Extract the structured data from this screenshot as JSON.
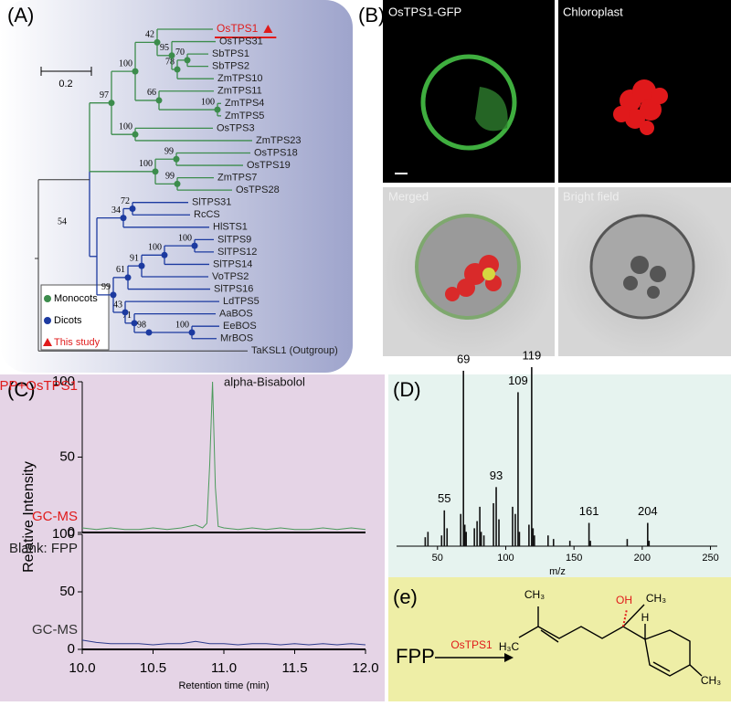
{
  "panels": {
    "a": {
      "label": "(A)",
      "leaves": [
        "OsTPS1",
        "OsTPS31",
        "SbTPS1",
        "SbTPS2",
        "ZmTPS10",
        "ZmTPS11",
        "ZmTPS4",
        "ZmTPS5",
        "OsTPS3",
        "ZmTPS23",
        "OsTPS18",
        "OsTPS19",
        "ZmTPS7",
        "OsTPS28",
        "SlTPS31",
        "RcCS",
        "HlSTS1",
        "SlTPS9",
        "SlTPS12",
        "SlTPS14",
        "VoTPS2",
        "SlTPS16",
        "LdTPS5",
        "AaBOS",
        "EeBOS",
        "MrBOS",
        "TaKSL1 (Outgroup)"
      ],
      "bootstrap": [
        42,
        95,
        78,
        70,
        100,
        66,
        100,
        97,
        100,
        99,
        100,
        99,
        72,
        34,
        54,
        100,
        100,
        99,
        91,
        61,
        43,
        71,
        98,
        100
      ],
      "scale": "0.2",
      "legend": [
        "Monocots",
        "Dicots",
        "This study"
      ]
    },
    "b": {
      "label": "(B)",
      "images": [
        "OsTPS1-GFP",
        "Chloroplast",
        "Merged",
        "Bright field"
      ]
    },
    "c": {
      "label": "(C)"
    },
    "d": {
      "label": "(D)"
    },
    "e": {
      "label": "(e)",
      "substrate": "FPP",
      "enzyme": "OsTPS1",
      "groups": [
        "CH₃",
        "OH",
        "CH₃",
        "H",
        "H₃C",
        "CH₃"
      ]
    }
  },
  "chart_data": [
    {
      "type": "line",
      "ylabel": "Relative Intensity",
      "x": [
        10.0,
        10.1,
        10.2,
        10.3,
        10.4,
        10.5,
        10.6,
        10.7,
        10.8,
        10.85,
        10.88,
        10.9,
        10.92,
        10.94,
        10.96,
        11.0,
        11.1,
        11.2,
        11.3,
        11.4,
        11.5,
        11.6,
        11.7,
        11.8,
        11.9,
        12.0
      ],
      "series": [
        {
          "name": "FPP+OsTPS1",
          "color": "#4c9a5c",
          "values": [
            3,
            2,
            3,
            2,
            2,
            3,
            2,
            3,
            5,
            3,
            6,
            45,
            100,
            30,
            4,
            3,
            2,
            3,
            2,
            3,
            2,
            2,
            3,
            2,
            3,
            2
          ]
        }
      ],
      "annotations": [
        "alpha-Bisabolol",
        "GC-MS"
      ],
      "xlim": [
        10.0,
        12.0
      ],
      "ylim": [
        0,
        100
      ],
      "yticks": [
        0,
        50,
        100
      ]
    },
    {
      "type": "line",
      "xlabel": "Retention time (min)",
      "x": [
        10.0,
        10.1,
        10.2,
        10.3,
        10.4,
        10.5,
        10.6,
        10.7,
        10.8,
        10.9,
        11.0,
        11.1,
        11.2,
        11.3,
        11.4,
        11.5,
        11.6,
        11.7,
        11.8,
        11.9,
        12.0
      ],
      "series": [
        {
          "name": "Blank: FPP",
          "color": "#2c3a8c",
          "values": [
            8,
            6,
            5,
            5,
            5,
            4,
            5,
            5,
            7,
            5,
            5,
            4,
            5,
            5,
            4,
            5,
            4,
            5,
            4,
            5,
            4
          ]
        }
      ],
      "annotations": [
        "GC-MS"
      ],
      "xlim": [
        10.0,
        12.0
      ],
      "ylim": [
        0,
        100
      ],
      "yticks": [
        0,
        50,
        100
      ],
      "xticks": [
        {
          "value": 10,
          "label": "10.0"
        },
        10.5,
        {
          "value": 11,
          "label": "11.0"
        },
        11.5,
        {
          "value": 12,
          "label": "12.0"
        }
      ]
    },
    {
      "type": "bar",
      "xlabel": "m/z",
      "color": "#111111",
      "x": [
        41,
        43,
        53,
        55,
        57,
        67,
        69,
        70,
        71,
        77,
        79,
        81,
        82,
        84,
        91,
        93,
        95,
        105,
        107,
        109,
        110,
        117,
        119,
        120,
        121,
        131,
        135,
        147,
        161,
        162,
        189,
        204,
        205
      ],
      "values": [
        5,
        8,
        6,
        20,
        10,
        18,
        98,
        12,
        8,
        10,
        14,
        22,
        8,
        6,
        24,
        33,
        15,
        22,
        18,
        86,
        8,
        12,
        100,
        10,
        6,
        6,
        4,
        3,
        13,
        3,
        4,
        13,
        3
      ],
      "peak_labels": [
        55,
        69,
        93,
        109,
        119,
        161,
        204
      ],
      "xlim": [
        20,
        255
      ],
      "ylim": [
        0,
        100
      ],
      "xticks": [
        50,
        100,
        150,
        200,
        250
      ]
    }
  ]
}
